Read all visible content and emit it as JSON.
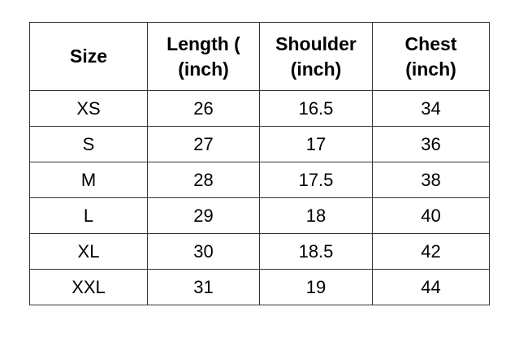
{
  "size_chart": {
    "headers": [
      {
        "line1": "Size",
        "line2": ""
      },
      {
        "line1": "Length (",
        "line2": "(inch)"
      },
      {
        "line1": "Shoulder",
        "line2": "(inch)"
      },
      {
        "line1": "Chest",
        "line2": "(inch)"
      }
    ],
    "rows": [
      [
        "XS",
        "26",
        "16.5",
        "34"
      ],
      [
        "S",
        "27",
        "17",
        "36"
      ],
      [
        "M",
        "28",
        "17.5",
        "38"
      ],
      [
        "L",
        "29",
        "18",
        "40"
      ],
      [
        "XL",
        "30",
        "18.5",
        "42"
      ],
      [
        "XXL",
        "31",
        "19",
        "44"
      ]
    ]
  }
}
